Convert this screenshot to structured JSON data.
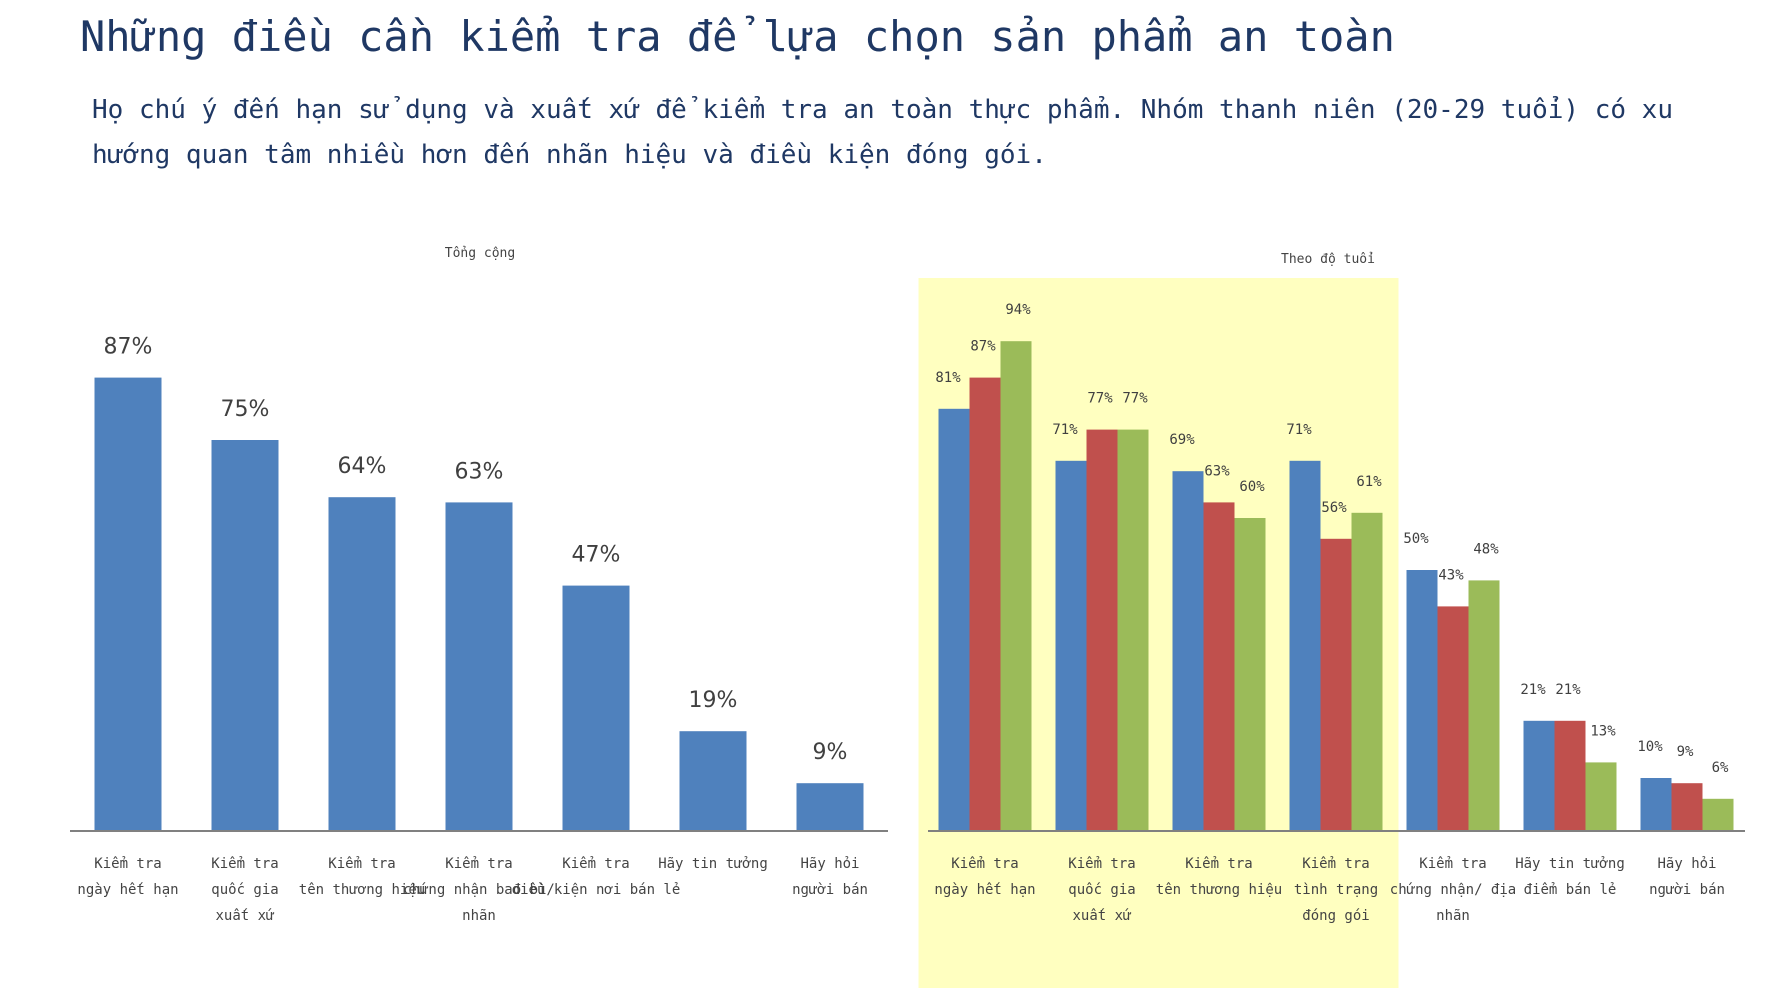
{
  "header": {
    "title": "Những điều cần kiểm tra để lựa chọn sản phẩm an toàn",
    "subtitle": "Họ chú ý đến hạn sử dụng và xuất xứ để kiểm tra an toàn thực phẩm. Nhóm thanh niên (20-29 tuổi) có xu hướng quan tâm nhiều hơn đến nhãn hiệu và điều kiện đóng gói."
  },
  "colors": {
    "blue": "#4f81bd",
    "red": "#c0504d",
    "green": "#9bbb59",
    "highlight": "#ffffc0",
    "axis": "#808080"
  },
  "chart_data": [
    {
      "type": "bar",
      "title": "Tổng cộng",
      "categories": [
        [
          "Kiểm tra",
          "ngày hết hạn"
        ],
        [
          "Kiểm tra",
          "quốc gia",
          "xuất xứ"
        ],
        [
          "Kiểm tra",
          "tên thương hiệu"
        ],
        [
          "Kiểm tra",
          "chứng nhận bao bì/",
          "nhãn"
        ],
        [
          "Kiểm tra",
          "điều kiện nơi bán lẻ"
        ],
        [
          "Hãy tin tưởng"
        ],
        [
          "Hãy hỏi",
          "người bán"
        ]
      ],
      "values": [
        87,
        75,
        64,
        63,
        47,
        19,
        9
      ],
      "value_labels": [
        "87%",
        "75%",
        "64%",
        "63%",
        "47%",
        "19%",
        "9%"
      ],
      "ylim": [
        0,
        100
      ]
    },
    {
      "type": "bar",
      "title": "Theo độ tuổi",
      "categories": [
        [
          "Kiểm tra",
          "ngày hết hạn"
        ],
        [
          "Kiểm tra",
          "quốc gia",
          "xuất xứ"
        ],
        [
          "Kiểm tra",
          "tên thương hiệu"
        ],
        [
          "Kiểm tra",
          "tình trạng",
          "đóng gói"
        ],
        [
          "Kiểm tra",
          "chứng nhận/ địa",
          "nhãn"
        ],
        [
          "Hãy tin tưởng",
          "điểm bán lẻ"
        ],
        [
          "Hãy hỏi",
          "người bán"
        ]
      ],
      "series": [
        {
          "values": [
            81,
            71,
            69,
            71,
            50,
            21,
            10
          ],
          "labels": [
            "81%",
            "71%",
            "69%",
            "71%",
            "50%",
            "21%",
            "10%"
          ]
        },
        {
          "values": [
            87,
            77,
            63,
            56,
            43,
            21,
            9
          ],
          "labels": [
            "87%",
            "77%",
            "63%",
            "56%",
            "43%",
            "21%",
            "9%"
          ]
        },
        {
          "values": [
            94,
            77,
            60,
            61,
            48,
            13,
            6
          ],
          "labels": [
            "94%",
            "77%",
            "60%",
            "61%",
            "48%",
            "13%",
            "6%"
          ]
        }
      ],
      "ylim": [
        0,
        100
      ],
      "highlight_categories": [
        0,
        3
      ]
    }
  ]
}
